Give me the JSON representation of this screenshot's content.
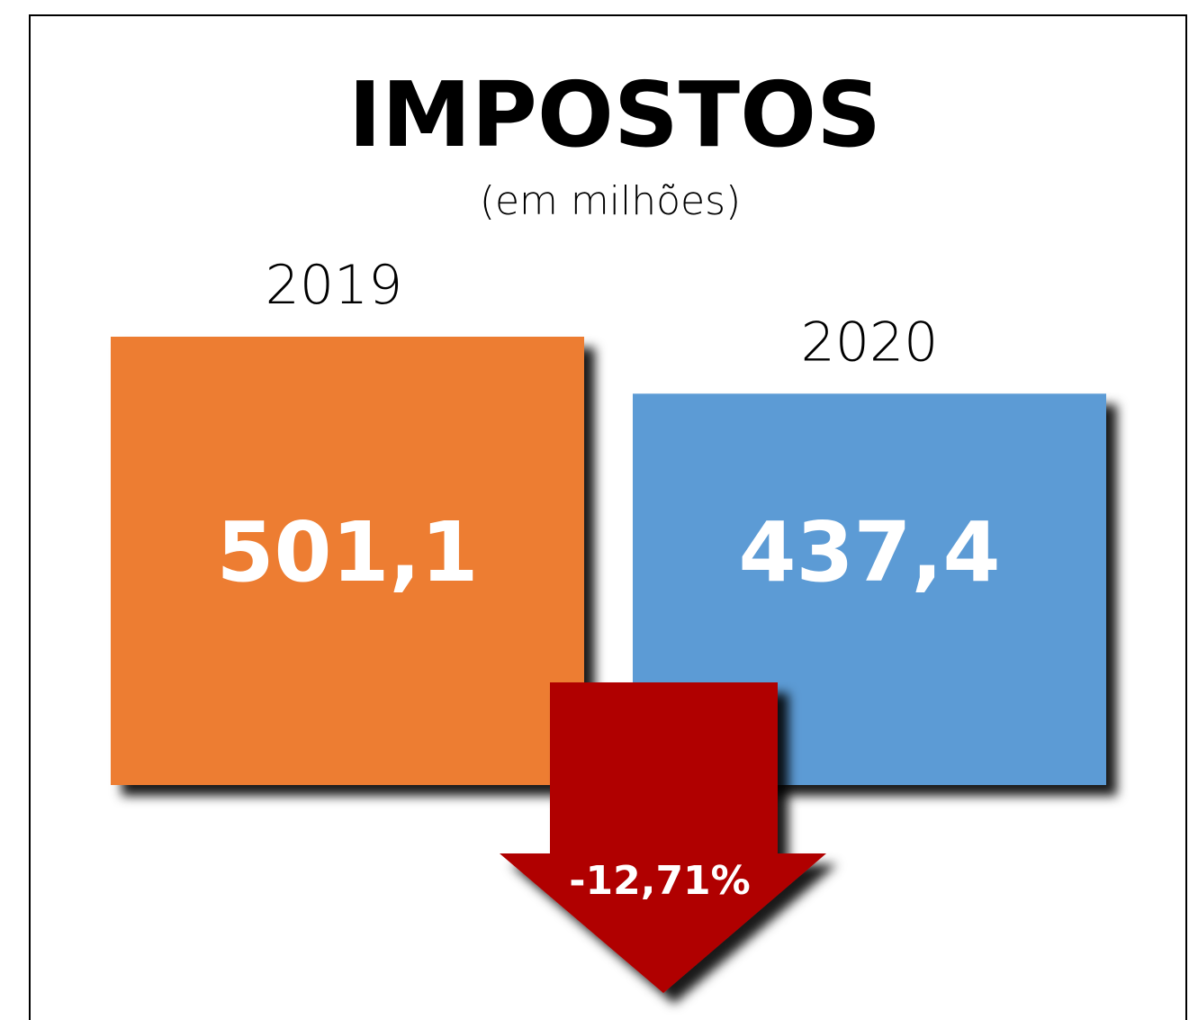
{
  "chart_data": {
    "type": "bar",
    "title": "IMPOSTOS",
    "subtitle": "(em milhões)",
    "categories": [
      "2019",
      "2020"
    ],
    "values": [
      501.1,
      437.4
    ],
    "value_labels": [
      "501,1",
      "437,4"
    ],
    "colors": [
      "#ed7d31",
      "#5b9bd5"
    ],
    "annotation": "-12,71%",
    "annotation_color": "#b00000"
  }
}
